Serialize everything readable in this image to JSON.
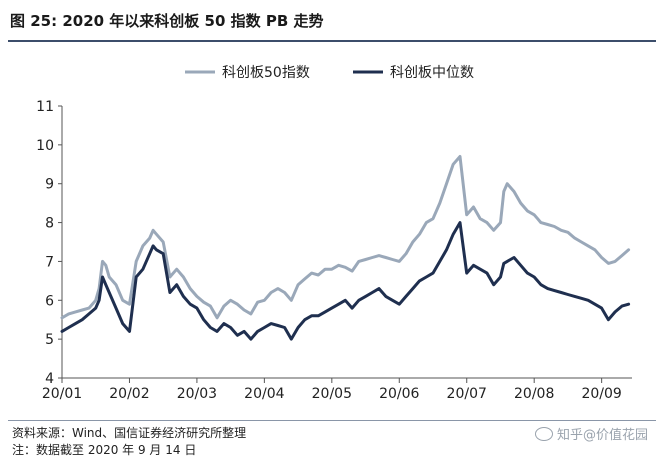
{
  "header": {
    "title": "图 25: 2020 年以来科创板 50 指数 PB 走势"
  },
  "footer": {
    "source": "资料来源：Wind、国信证券经济研究所整理",
    "note": "注：数据截至 2020 年 9 月 14 日",
    "watermark": "知乎@价值花园"
  },
  "colors": {
    "series1": "#9aa8b9",
    "series2": "#1f2f4f",
    "title_rule": "#3c4e6b"
  },
  "chart_data": {
    "type": "line",
    "title": "",
    "xlabel": "",
    "ylabel": "",
    "ylim": [
      4,
      11
    ],
    "yticks": [
      4,
      5,
      6,
      7,
      8,
      9,
      10,
      11
    ],
    "xlim": [
      0,
      8.45
    ],
    "xticks": [
      {
        "value": 0,
        "label": "20/01"
      },
      {
        "value": 1,
        "label": "20/02"
      },
      {
        "value": 2,
        "label": "20/03"
      },
      {
        "value": 3,
        "label": "20/04"
      },
      {
        "value": 4,
        "label": "20/05"
      },
      {
        "value": 5,
        "label": "20/06"
      },
      {
        "value": 6,
        "label": "20/07"
      },
      {
        "value": 7,
        "label": "20/08"
      },
      {
        "value": 8,
        "label": "20/09"
      }
    ],
    "legend_position": "top-center",
    "series": [
      {
        "name": "科创板50指数",
        "color": "#9aa8b9",
        "x": [
          0,
          0.1,
          0.2,
          0.3,
          0.4,
          0.5,
          0.55,
          0.6,
          0.65,
          0.7,
          0.8,
          0.9,
          1.0,
          1.1,
          1.2,
          1.3,
          1.35,
          1.4,
          1.5,
          1.6,
          1.7,
          1.8,
          1.9,
          2.0,
          2.1,
          2.2,
          2.3,
          2.4,
          2.5,
          2.6,
          2.7,
          2.8,
          2.9,
          3.0,
          3.1,
          3.2,
          3.3,
          3.4,
          3.5,
          3.6,
          3.7,
          3.8,
          3.9,
          4.0,
          4.1,
          4.2,
          4.3,
          4.4,
          4.5,
          4.6,
          4.7,
          4.8,
          4.9,
          5.0,
          5.1,
          5.2,
          5.3,
          5.4,
          5.5,
          5.6,
          5.7,
          5.8,
          5.9,
          6.0,
          6.1,
          6.2,
          6.3,
          6.4,
          6.5,
          6.55,
          6.6,
          6.7,
          6.8,
          6.9,
          7.0,
          7.05,
          7.1,
          7.2,
          7.3,
          7.4,
          7.5,
          7.6,
          7.7,
          7.8,
          7.9,
          8.0,
          8.1,
          8.2,
          8.3,
          8.4
        ],
        "values": [
          5.55,
          5.65,
          5.7,
          5.75,
          5.8,
          6.0,
          6.3,
          7.0,
          6.9,
          6.6,
          6.4,
          6.0,
          5.9,
          7.0,
          7.4,
          7.6,
          7.8,
          7.7,
          7.5,
          6.6,
          6.8,
          6.6,
          6.3,
          6.1,
          5.95,
          5.85,
          5.55,
          5.85,
          6.0,
          5.9,
          5.75,
          5.65,
          5.95,
          6.0,
          6.2,
          6.3,
          6.2,
          6.0,
          6.4,
          6.55,
          6.7,
          6.65,
          6.8,
          6.8,
          6.9,
          6.85,
          6.75,
          7.0,
          7.05,
          7.1,
          7.15,
          7.1,
          7.05,
          7.0,
          7.2,
          7.5,
          7.7,
          8.0,
          8.1,
          8.5,
          9.0,
          9.5,
          9.7,
          8.2,
          8.4,
          8.1,
          8.0,
          7.8,
          8.0,
          8.8,
          9.0,
          8.8,
          8.5,
          8.3,
          8.2,
          8.1,
          8.0,
          7.95,
          7.9,
          7.8,
          7.75,
          7.6,
          7.5,
          7.4,
          7.3,
          7.1,
          6.95,
          7.0,
          7.15,
          7.3
        ]
      },
      {
        "name": "科创板中位数",
        "color": "#1f2f4f",
        "x": [
          0,
          0.1,
          0.2,
          0.3,
          0.4,
          0.5,
          0.55,
          0.6,
          0.65,
          0.7,
          0.8,
          0.9,
          1.0,
          1.1,
          1.2,
          1.3,
          1.35,
          1.4,
          1.5,
          1.6,
          1.7,
          1.8,
          1.9,
          2.0,
          2.1,
          2.2,
          2.3,
          2.4,
          2.5,
          2.6,
          2.7,
          2.8,
          2.9,
          3.0,
          3.1,
          3.2,
          3.3,
          3.4,
          3.5,
          3.6,
          3.7,
          3.8,
          3.9,
          4.0,
          4.1,
          4.2,
          4.3,
          4.4,
          4.5,
          4.6,
          4.7,
          4.8,
          4.9,
          5.0,
          5.1,
          5.2,
          5.3,
          5.4,
          5.5,
          5.6,
          5.7,
          5.8,
          5.9,
          6.0,
          6.1,
          6.2,
          6.3,
          6.4,
          6.5,
          6.55,
          6.6,
          6.7,
          6.8,
          6.9,
          7.0,
          7.05,
          7.1,
          7.2,
          7.3,
          7.4,
          7.5,
          7.6,
          7.7,
          7.8,
          7.9,
          8.0,
          8.1,
          8.2,
          8.3,
          8.4
        ],
        "values": [
          5.2,
          5.3,
          5.4,
          5.5,
          5.65,
          5.8,
          6.0,
          6.6,
          6.4,
          6.2,
          5.8,
          5.4,
          5.2,
          6.6,
          6.8,
          7.2,
          7.4,
          7.3,
          7.2,
          6.2,
          6.4,
          6.1,
          5.9,
          5.8,
          5.5,
          5.3,
          5.2,
          5.4,
          5.3,
          5.1,
          5.2,
          5.0,
          5.2,
          5.3,
          5.4,
          5.35,
          5.3,
          5.0,
          5.3,
          5.5,
          5.6,
          5.6,
          5.7,
          5.8,
          5.9,
          6.0,
          5.8,
          6.0,
          6.1,
          6.2,
          6.3,
          6.1,
          6.0,
          5.9,
          6.1,
          6.3,
          6.5,
          6.6,
          6.7,
          7.0,
          7.3,
          7.7,
          8.0,
          6.7,
          6.9,
          6.8,
          6.7,
          6.4,
          6.6,
          6.95,
          7.0,
          7.1,
          6.9,
          6.7,
          6.6,
          6.5,
          6.4,
          6.3,
          6.25,
          6.2,
          6.15,
          6.1,
          6.05,
          6.0,
          5.9,
          5.8,
          5.5,
          5.7,
          5.85,
          5.9
        ]
      }
    ]
  }
}
